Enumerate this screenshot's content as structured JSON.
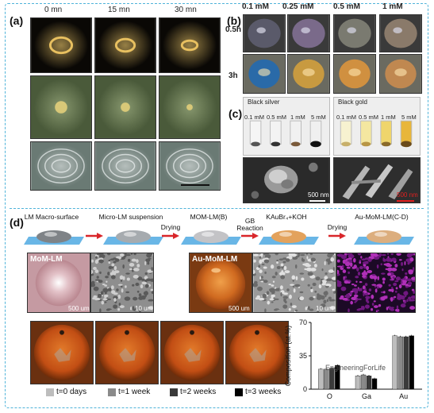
{
  "panels": {
    "a": {
      "label": "(a)",
      "times": [
        "0 mn",
        "15 mn",
        "30 mn"
      ]
    },
    "b": {
      "label": "(b)",
      "concentrations": [
        "0.1 mM",
        "0.25 mM",
        "0.5 mM",
        "1 mM"
      ],
      "rows": [
        "0.5h",
        "3h"
      ]
    },
    "c": {
      "label": "(c)",
      "titles": [
        "Black silver",
        "Black gold"
      ],
      "vial_labels": [
        "0.1 mM",
        "0.5 mM",
        "1 mM",
        "5 mM"
      ],
      "scale_left": "500 nm",
      "scale_right": "500 nm"
    },
    "d": {
      "label": "(d)",
      "steps": [
        "LM Macro-surface",
        "Micro-LM suspension",
        "MOM-LM(B)",
        "KAuBr₄+KOH",
        "Au-MoM-LM(C-D)"
      ],
      "arrow_labels": [
        "Drying",
        "GB\nReaction",
        "Drying"
      ],
      "mom_label": "MoM-LM",
      "au_label": "Au-MoM-LM",
      "scales": [
        "500 um",
        "10 um",
        "500 um",
        "10 um"
      ]
    }
  },
  "legend": [
    "t=0 days",
    "t=1 week",
    "t=2 weeks",
    "t=3 weeks"
  ],
  "watermark": "EngineeringForLife",
  "colors": {
    "frame": "#4fb3d9",
    "arrow": "#d9262a",
    "t0": "#bdbdbd",
    "t1": "#8a8a8a",
    "t2": "#3a3a3a",
    "t3": "#000000"
  },
  "chart_data": {
    "type": "bar",
    "ylabel": "Composition (at.%)",
    "categories": [
      "O",
      "Ga",
      "Au"
    ],
    "series": [
      {
        "name": "t=0 days",
        "values": [
          21,
          14,
          56
        ]
      },
      {
        "name": "t=1 week",
        "values": [
          21,
          15,
          55
        ]
      },
      {
        "name": "t=2 weeks",
        "values": [
          22,
          14,
          55
        ]
      },
      {
        "name": "t=3 weeks",
        "values": [
          25,
          11,
          56
        ]
      }
    ],
    "errors": [
      1,
      1,
      1
    ],
    "ylim": [
      0,
      70
    ],
    "yticks": [
      0,
      35,
      70
    ]
  }
}
